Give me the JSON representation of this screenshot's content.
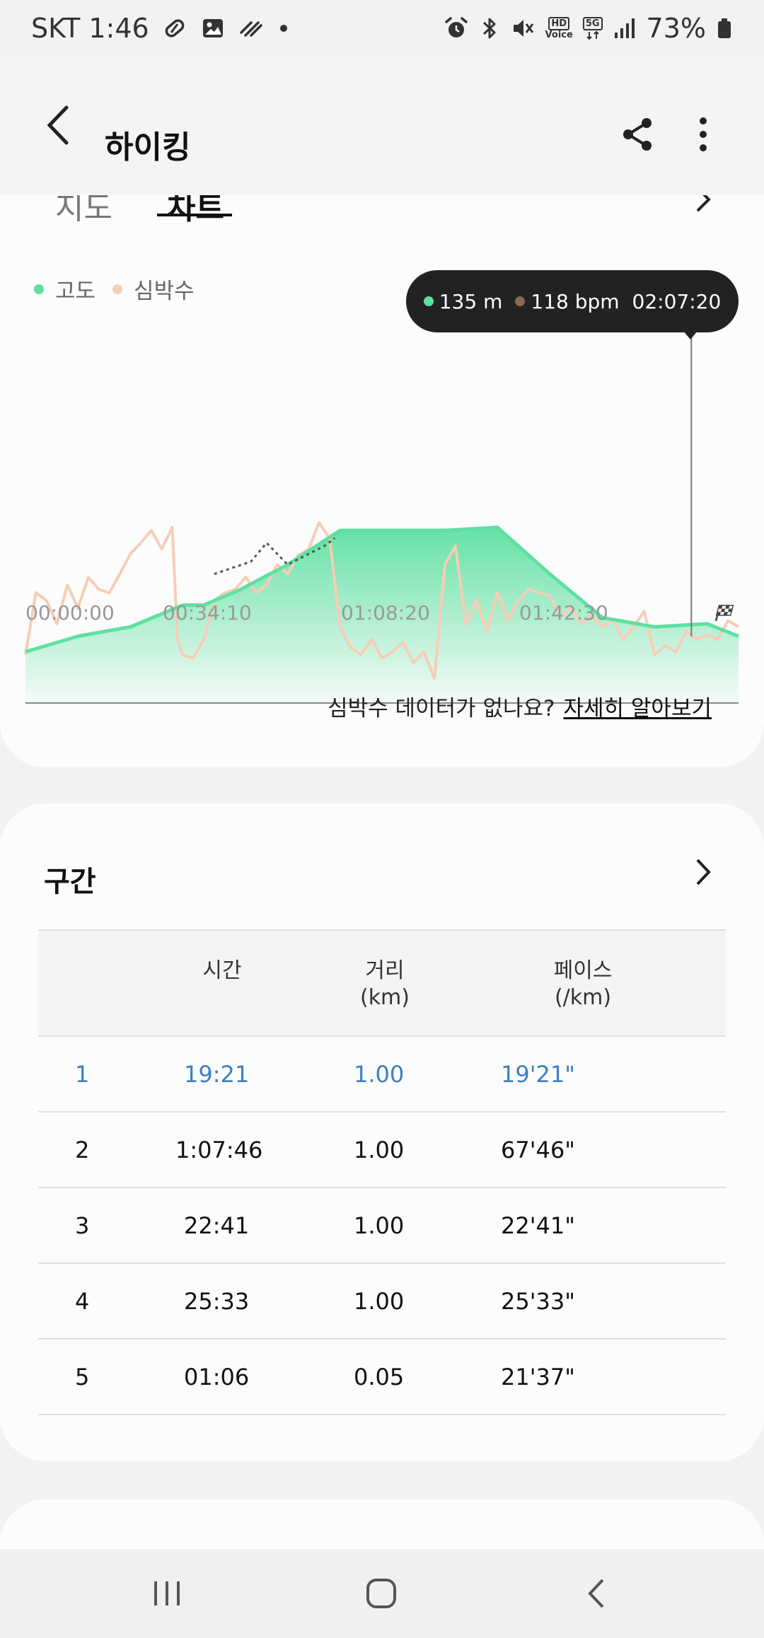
{
  "status_bar": {
    "carrier_time": "SKT 1:46",
    "battery": "73%",
    "left_icons": [
      "pill-icon",
      "image-icon",
      "wind-icon",
      "dot-icon"
    ],
    "right_icons": [
      "alarm-icon",
      "bluetooth-icon",
      "mute-icon",
      "hd-voice-icon",
      "5g-icon",
      "signal-icon",
      "battery-icon"
    ],
    "hd_label": "HD",
    "voice_label": "Voice",
    "net_label": "5G"
  },
  "header": {
    "title": "하이킹"
  },
  "tabs": {
    "partial_left": "지도",
    "partial_active": "차트"
  },
  "legend": {
    "altitude_label": "고도",
    "heart_rate_label": "심박수",
    "altitude_color": "#5ee0a0",
    "heart_rate_color": "#f7cdb6"
  },
  "tooltip": {
    "altitude": "135 m",
    "heart_rate": "118 bpm",
    "time": "02:07:20",
    "altitude_dot_color": "#5ee0a0",
    "hr_dot_color": "#8a6a55"
  },
  "chart_data": {
    "type": "area",
    "x_ticks": [
      "00:00:00",
      "00:34:10",
      "01:08:20",
      "01:42:30"
    ],
    "series": [
      {
        "name": "고도",
        "x_minutes": [
          0,
          10,
          20,
          30,
          34,
          41,
          50,
          60,
          70,
          80,
          90,
          100,
          110,
          120,
          130,
          136
        ],
        "values": [
          0.22,
          0.32,
          0.38,
          0.52,
          0.52,
          0.62,
          0.78,
          1.0,
          1.0,
          1.0,
          1.02,
          0.72,
          0.44,
          0.38,
          0.4,
          0.32
        ]
      },
      {
        "name": "심박수",
        "x_minutes": [
          0,
          2,
          4,
          6,
          8,
          10,
          12,
          14,
          16,
          18,
          20,
          22,
          24,
          26,
          28,
          29,
          30,
          32,
          34,
          36,
          38,
          40,
          42,
          44,
          46,
          48,
          50,
          52,
          54,
          56,
          58,
          60,
          62,
          64,
          66,
          68,
          70,
          72,
          74,
          76,
          78,
          80,
          82,
          84,
          86,
          88,
          90,
          92,
          94,
          96,
          98,
          100,
          102,
          104,
          106,
          108,
          110,
          112,
          114,
          116,
          118,
          120,
          122,
          124,
          126,
          128,
          130,
          132,
          134,
          136
        ],
        "values": [
          0.2,
          0.6,
          0.55,
          0.4,
          0.65,
          0.5,
          0.7,
          0.62,
          0.6,
          0.72,
          0.85,
          0.92,
          1.0,
          0.88,
          1.02,
          0.3,
          0.2,
          0.18,
          0.3,
          0.55,
          0.6,
          0.62,
          0.7,
          0.6,
          0.65,
          0.78,
          0.72,
          0.84,
          0.88,
          1.05,
          0.95,
          0.38,
          0.25,
          0.2,
          0.3,
          0.18,
          0.22,
          0.28,
          0.15,
          0.22,
          0.05,
          0.78,
          0.9,
          0.4,
          0.55,
          0.35,
          0.6,
          0.42,
          0.55,
          0.62,
          0.6,
          0.58,
          0.45,
          0.5,
          0.4,
          0.45,
          0.38,
          0.42,
          0.3,
          0.38,
          0.48,
          0.2,
          0.26,
          0.22,
          0.35,
          0.3,
          0.33,
          0.3,
          0.42,
          0.38
        ]
      }
    ],
    "cursor_minutes": 127
  },
  "help": {
    "question": "심박수 데이터가 없나요?",
    "link": "자세히 알아보기"
  },
  "laps": {
    "title": "구간",
    "headers": {
      "time": "시간",
      "distance_1": "거리",
      "distance_2": "(km)",
      "pace_1": "페이스",
      "pace_2": "(/km)"
    },
    "rows": [
      {
        "num": "1",
        "time": "19:21",
        "distance": "1.00",
        "pace": "19'21\""
      },
      {
        "num": "2",
        "time": "1:07:46",
        "distance": "1.00",
        "pace": "67'46\""
      },
      {
        "num": "3",
        "time": "22:41",
        "distance": "1.00",
        "pace": "22'41\""
      },
      {
        "num": "4",
        "time": "25:33",
        "distance": "1.00",
        "pace": "25'33\""
      },
      {
        "num": "5",
        "time": "01:06",
        "distance": "0.05",
        "pace": "21'37\""
      }
    ],
    "active_color": "#3a7fc4"
  },
  "nav": {
    "icons": [
      "recent-apps-icon",
      "home-icon",
      "back-icon"
    ]
  }
}
